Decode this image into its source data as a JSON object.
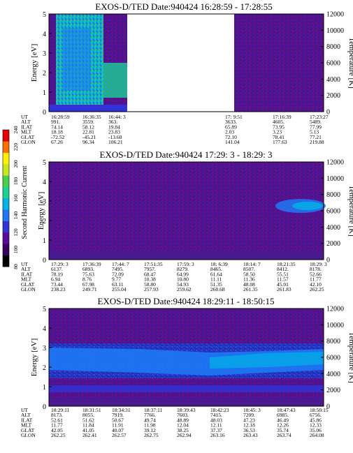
{
  "chart_data": [
    {
      "type": "heatmap",
      "title": "EXOS-D/TED  Date:940424  16:28:59 - 17:28:55",
      "ylabel": "Energy [eV]",
      "ylabel_right": "Temperature [K]",
      "ylim": [
        0,
        5
      ],
      "ylim_right": [
        0,
        12000
      ],
      "yticks": [
        "0",
        "1",
        "2",
        "3",
        "4",
        "5"
      ],
      "yticks_right": [
        "0",
        "2000",
        "4000",
        "6000",
        "8000",
        "10000",
        "12000"
      ],
      "data_gap": true,
      "table": {
        "row_labels": [
          "UT",
          "ALT",
          "ILAT",
          "MLT",
          "GLAT",
          "GLON"
        ],
        "columns": [
          [
            "16:28:59",
            "991.",
            "74.14",
            "18.18",
            "-72.52",
            "67.26"
          ],
          [
            "16:36:35",
            "3559.",
            "58.12",
            "22.81",
            "-45.21",
            "96.34"
          ],
          [
            "16:44: 3",
            "363.",
            "19.84",
            "23.83",
            "-13.60",
            "106.21"
          ],
          [
            "17: 9:51",
            "3633.",
            "65.89",
            "2.03",
            "72.10",
            "141.04"
          ],
          [
            "17:16:39",
            "4605.",
            "73.95",
            "3.23",
            "78.41",
            "177.63"
          ],
          [
            "17:23:27",
            "5489.",
            "77.99",
            "5.13",
            "77.21",
            "219.88"
          ]
        ]
      }
    },
    {
      "type": "heatmap",
      "title": "EXOS-D/TED   Date:940424   17:29: 3 - 18:29: 3",
      "ylabel": "Energy [eV]",
      "ylabel_right": "Temperature [K]",
      "ylim": [
        0,
        5
      ],
      "ylim_right": [
        0,
        12000
      ],
      "yticks": [
        "0",
        "1",
        "2",
        "3",
        "4",
        "5"
      ],
      "yticks_right": [
        "0",
        "2000",
        "4000",
        "6000",
        "8000",
        "10000",
        "12000"
      ],
      "table": {
        "row_labels": [
          "UT",
          "ALT",
          "ILAT",
          "MLT",
          "GLAT",
          "GLON"
        ],
        "columns": [
          [
            "17:29: 3",
            "6137.",
            "78.19",
            "6.94",
            "73.44",
            "238.23"
          ],
          [
            "17:36:39",
            "6893.",
            "75.63",
            "8.76",
            "67.98",
            "249.71"
          ],
          [
            "17:44: 7",
            "7495.",
            "72.09",
            "9.77",
            "63.11",
            "255.04"
          ],
          [
            "17:51:35",
            "7957.",
            "68.47",
            "10.38",
            "58.80",
            "257.93"
          ],
          [
            "17:59: 3",
            "8279.",
            "64.99",
            "10.80",
            "54.93",
            "259.62"
          ],
          [
            "18: 6:39",
            "8465.",
            "61.64",
            "11.11",
            "51.35",
            "260.68"
          ],
          [
            "18:14: 7",
            "8507.",
            "58.50",
            "11.36",
            "48.08",
            "261.35"
          ],
          [
            "18:21:35",
            "8412.",
            "55.51",
            "11.57",
            "45.01",
            "261.83"
          ],
          [
            "18:29: 3",
            "8178.",
            "52.66",
            "11.77",
            "42.10",
            "262.25"
          ]
        ]
      }
    },
    {
      "type": "heatmap",
      "title": "EXOS-D/TED   Date:940424   18:29:11 - 18:50:15",
      "ylabel": "Energy [eV]",
      "ylabel_right": "Temperature [K]",
      "ylim": [
        0,
        5
      ],
      "ylim_right": [
        0,
        12000
      ],
      "yticks": [
        "0",
        "1",
        "2",
        "3",
        "4",
        "5"
      ],
      "yticks_right": [
        "0",
        "2000",
        "4000",
        "6000",
        "8000",
        "10000",
        "12000"
      ],
      "table": {
        "row_labels": [
          "UT",
          "ALT",
          "ILAT",
          "MLT",
          "GLAT",
          "GLON"
        ],
        "columns": [
          [
            "18:29:11",
            "8173.",
            "52.61",
            "11.77",
            "42.05",
            "262.25"
          ],
          [
            "18:31:51",
            "8055.",
            "51.62",
            "11.84",
            "41.05",
            "262.41"
          ],
          [
            "18:34:31",
            "7919.",
            "50.67",
            "11.91",
            "40.07",
            "262.57"
          ],
          [
            "18:37:11",
            "7766.",
            "49.74",
            "11.98",
            "39.12",
            "262.75"
          ],
          [
            "18:39:43",
            "7603.",
            "48.89",
            "12.04",
            "38.25",
            "262.94"
          ],
          [
            "18:42:23",
            "7415.",
            "48.03",
            "12.11",
            "37.37",
            "263.16"
          ],
          [
            "18:45: 3",
            "7209.",
            "47.23",
            "12.18",
            "36.53",
            "263.43"
          ],
          [
            "18:47:43",
            "6985.",
            "46.49",
            "12.26",
            "35.74",
            "263.74"
          ],
          [
            "18:50:15",
            "6756.",
            "45.86",
            "12.33",
            "35.06",
            "264.08"
          ]
        ]
      }
    }
  ],
  "colorbar": {
    "label": "Second Harmonic Current",
    "ticks": [
      "80",
      "100",
      "120",
      "140",
      "160",
      "180",
      "200",
      "220",
      "240"
    ],
    "vmin": 80,
    "vmax": 240,
    "colors": [
      "#000000",
      "#3a0060",
      "#5a0a9a",
      "#3232d8",
      "#1e78f5",
      "#00b4e6",
      "#19d296",
      "#46d246",
      "#c8e61e",
      "#fff000",
      "#ff6e00",
      "#e60000"
    ]
  }
}
